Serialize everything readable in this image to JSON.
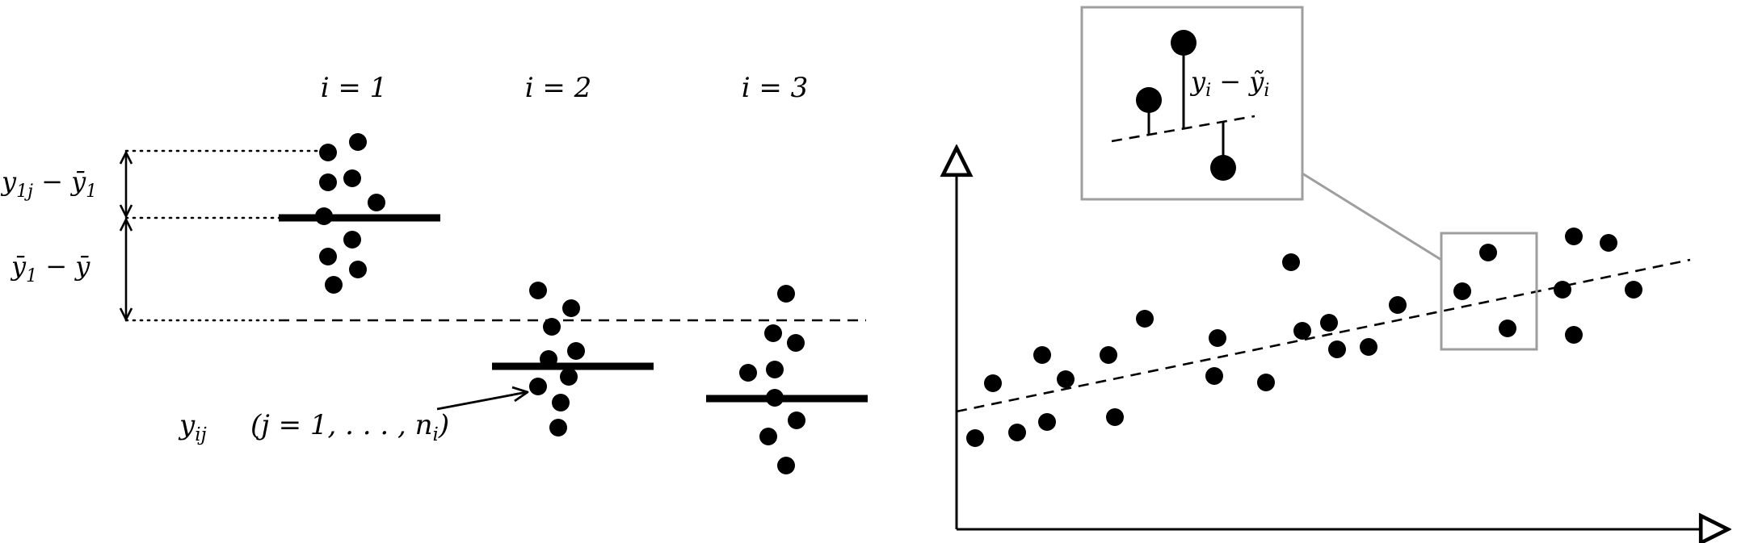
{
  "left_panel": {
    "group_labels": [
      "i = 1",
      "i = 2",
      "i = 3"
    ],
    "label_within": "y",
    "label_within_sub": "1j",
    "label_within_rest": " − ȳ",
    "label_within_rest_sub": "1",
    "label_between": "ȳ",
    "label_between_sub": "1",
    "label_between_rest": " − ȳ",
    "obs_label": "y",
    "obs_label_sub": "ij",
    "obs_range": "(j = 1, . . . , n",
    "obs_range_sub": "i",
    "obs_range_close": ")"
  },
  "right_panel": {
    "inset_label": "y",
    "inset_label_sub": "i",
    "inset_label_rest": " − ỹ",
    "inset_label_rest_sub": "i"
  },
  "colors": {
    "ink": "#000000",
    "frame": "#9e9e9e"
  }
}
